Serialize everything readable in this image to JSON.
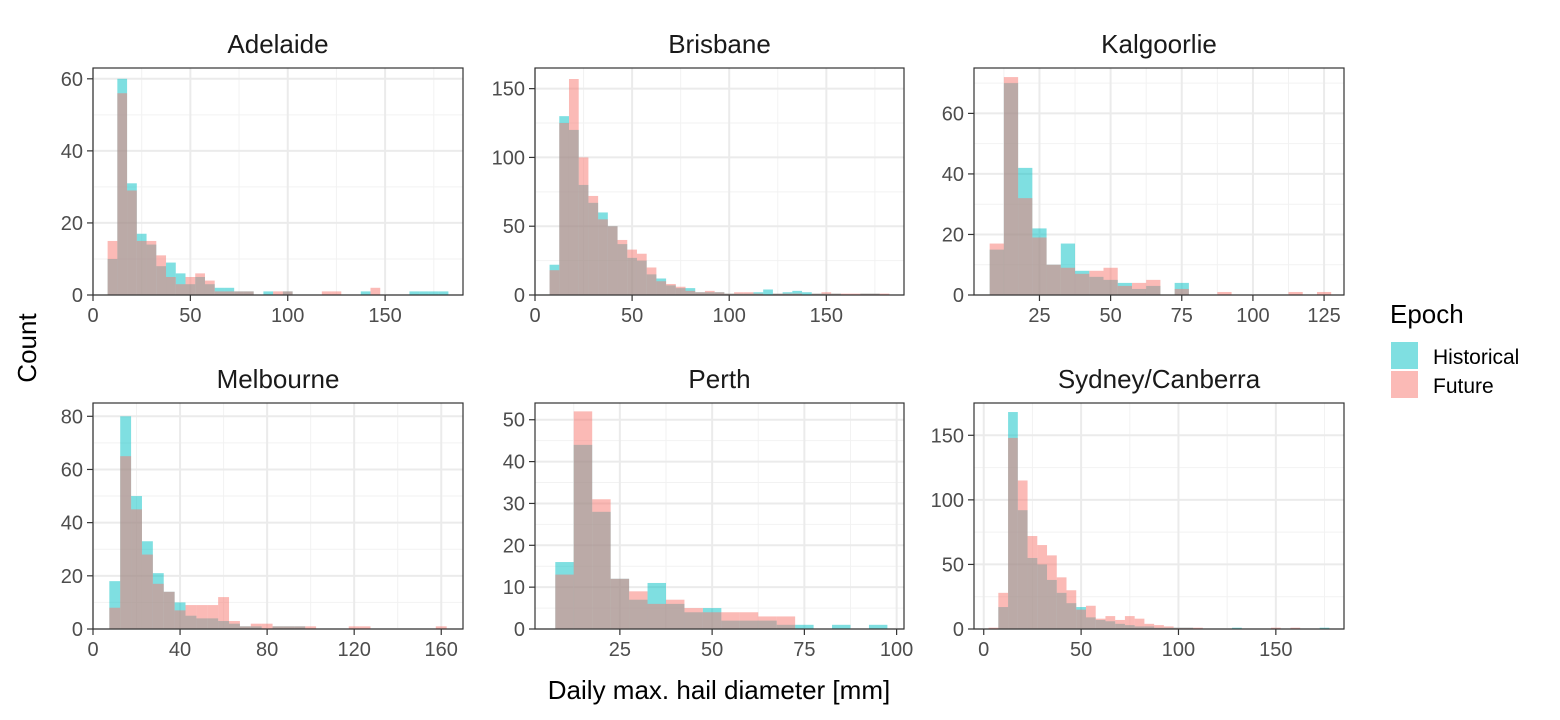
{
  "figure": {
    "xlabel": "Daily max. hail diameter [mm]",
    "ylabel": "Count"
  },
  "legend": {
    "title": "Epoch",
    "placement": "right",
    "items": [
      {
        "label": "Historical",
        "color": "#00BFC4"
      },
      {
        "label": "Future",
        "color": "#F8766D"
      }
    ]
  },
  "chart_data": [
    {
      "type": "bar",
      "title": "Adelaide",
      "bin_width": 5,
      "xlim": [
        0,
        190
      ],
      "ylim": [
        0,
        63
      ],
      "xticks": [
        0,
        50,
        100,
        150
      ],
      "xtick_labels": [
        "0",
        "50",
        "100",
        "150"
      ],
      "yticks": [
        0,
        20,
        40,
        60
      ],
      "ytick_labels": [
        "0",
        "20",
        "40",
        "60"
      ],
      "grid": true,
      "series": [
        {
          "name": "Historical",
          "x": [
            10,
            15,
            20,
            25,
            30,
            35,
            40,
            45,
            50,
            55,
            60,
            65,
            70,
            75,
            80,
            85,
            90,
            95,
            100,
            120,
            125,
            140,
            145,
            165,
            170,
            175,
            180
          ],
          "values": [
            10,
            60,
            31,
            17,
            14,
            8,
            9,
            6,
            3,
            5,
            3,
            2,
            2,
            1,
            1,
            0,
            1,
            0,
            1,
            0,
            0,
            1,
            0,
            1,
            1,
            1,
            1
          ]
        },
        {
          "name": "Future",
          "x": [
            10,
            15,
            20,
            25,
            30,
            35,
            40,
            45,
            50,
            55,
            60,
            65,
            70,
            75,
            80,
            85,
            90,
            95,
            100,
            120,
            125,
            140,
            145,
            165,
            170,
            175,
            180
          ],
          "values": [
            15,
            56,
            29,
            15,
            15,
            11,
            5,
            3,
            5,
            6,
            4,
            1,
            1,
            1,
            1,
            0,
            0,
            1,
            1,
            1,
            1,
            0,
            2,
            0,
            0,
            0,
            0
          ]
        }
      ]
    },
    {
      "type": "bar",
      "title": "Brisbane",
      "bin_width": 5,
      "xlim": [
        0,
        190
      ],
      "ylim": [
        0,
        165
      ],
      "xticks": [
        0,
        50,
        100,
        150
      ],
      "xtick_labels": [
        "0",
        "50",
        "100",
        "150"
      ],
      "yticks": [
        0,
        50,
        100,
        150
      ],
      "ytick_labels": [
        "0",
        "50",
        "100",
        "150"
      ],
      "grid": true,
      "series": [
        {
          "name": "Historical",
          "x": [
            10,
            15,
            20,
            25,
            30,
            35,
            40,
            45,
            50,
            55,
            60,
            65,
            70,
            75,
            80,
            85,
            90,
            95,
            100,
            105,
            110,
            115,
            120,
            125,
            130,
            135,
            140,
            145,
            150,
            155,
            160,
            165,
            170,
            175,
            180
          ],
          "values": [
            22,
            130,
            120,
            80,
            67,
            60,
            50,
            37,
            27,
            25,
            15,
            12,
            7,
            5,
            5,
            2,
            2,
            2,
            1,
            1,
            1,
            2,
            4,
            1,
            2,
            3,
            2,
            1,
            1,
            1,
            0,
            0,
            1,
            1,
            0
          ]
        },
        {
          "name": "Future",
          "x": [
            10,
            15,
            20,
            25,
            30,
            35,
            40,
            45,
            50,
            55,
            60,
            65,
            70,
            75,
            80,
            85,
            90,
            95,
            100,
            105,
            110,
            115,
            120,
            125,
            130,
            135,
            140,
            145,
            150,
            155,
            160,
            165,
            170,
            175,
            180
          ],
          "values": [
            18,
            125,
            157,
            100,
            72,
            55,
            50,
            40,
            33,
            30,
            20,
            10,
            8,
            6,
            3,
            2,
            3,
            2,
            1,
            2,
            2,
            1,
            0,
            1,
            1,
            1,
            0,
            1,
            2,
            1,
            1,
            1,
            1,
            1,
            1
          ]
        }
      ]
    },
    {
      "type": "bar",
      "title": "Kalgoorlie",
      "bin_width": 5,
      "xlim": [
        2,
        132
      ],
      "ylim": [
        0,
        75
      ],
      "xticks": [
        25,
        50,
        75,
        100,
        125
      ],
      "xtick_labels": [
        "25",
        "50",
        "75",
        "100",
        "125"
      ],
      "yticks": [
        0,
        20,
        40,
        60
      ],
      "ytick_labels": [
        "0",
        "20",
        "40",
        "60"
      ],
      "grid": true,
      "series": [
        {
          "name": "Historical",
          "x": [
            10,
            15,
            20,
            25,
            30,
            35,
            40,
            45,
            50,
            55,
            60,
            65,
            70,
            75,
            80,
            85,
            90,
            95,
            100,
            105,
            110,
            115,
            120,
            125
          ],
          "values": [
            15,
            70,
            42,
            22,
            10,
            17,
            8,
            6,
            5,
            4,
            2,
            3,
            0,
            4,
            0,
            0,
            0,
            0,
            0,
            0,
            0,
            0,
            0,
            0
          ]
        },
        {
          "name": "Future",
          "x": [
            10,
            15,
            20,
            25,
            30,
            35,
            40,
            45,
            50,
            55,
            60,
            65,
            70,
            75,
            80,
            85,
            90,
            95,
            100,
            105,
            110,
            115,
            120,
            125
          ],
          "values": [
            17,
            72,
            32,
            19,
            10,
            9,
            7,
            8,
            9,
            3,
            4,
            5,
            0,
            2,
            0,
            0,
            1,
            0,
            0,
            0,
            0,
            1,
            0,
            1
          ]
        }
      ]
    },
    {
      "type": "bar",
      "title": "Melbourne",
      "bin_width": 5,
      "xlim": [
        0,
        170
      ],
      "ylim": [
        0,
        85
      ],
      "xticks": [
        0,
        40,
        80,
        120,
        160
      ],
      "xtick_labels": [
        "0",
        "40",
        "80",
        "120",
        "160"
      ],
      "yticks": [
        0,
        20,
        40,
        60,
        80
      ],
      "ytick_labels": [
        "0",
        "20",
        "40",
        "60",
        "80"
      ],
      "grid": true,
      "series": [
        {
          "name": "Historical",
          "x": [
            10,
            15,
            20,
            25,
            30,
            35,
            40,
            45,
            50,
            55,
            60,
            65,
            70,
            75,
            80,
            85,
            90,
            95,
            100,
            105,
            110,
            115,
            120,
            125,
            130,
            135,
            140,
            145,
            150,
            155,
            160
          ],
          "values": [
            18,
            80,
            50,
            33,
            21,
            14,
            10,
            5,
            4,
            4,
            3,
            2,
            1,
            1,
            0,
            1,
            1,
            1,
            0,
            0,
            0,
            0,
            0,
            0,
            0,
            0,
            0,
            0,
            0,
            0,
            0
          ]
        },
        {
          "name": "Future",
          "x": [
            10,
            15,
            20,
            25,
            30,
            35,
            40,
            45,
            50,
            55,
            60,
            65,
            70,
            75,
            80,
            85,
            90,
            95,
            100,
            105,
            110,
            115,
            120,
            125,
            130,
            135,
            140,
            145,
            150,
            155,
            160
          ],
          "values": [
            8,
            65,
            45,
            28,
            17,
            14,
            7,
            9,
            9,
            9,
            12,
            3,
            1,
            2,
            2,
            1,
            1,
            1,
            1,
            0,
            0,
            0,
            1,
            1,
            0,
            0,
            0,
            0,
            0,
            0,
            1
          ]
        }
      ]
    },
    {
      "type": "bar",
      "title": "Perth",
      "bin_width": 5,
      "xlim": [
        2,
        102
      ],
      "ylim": [
        0,
        54
      ],
      "xticks": [
        25,
        50,
        75,
        100
      ],
      "xtick_labels": [
        "25",
        "50",
        "75",
        "100"
      ],
      "yticks": [
        0,
        10,
        20,
        30,
        40,
        50
      ],
      "ytick_labels": [
        "0",
        "10",
        "20",
        "30",
        "40",
        "50"
      ],
      "grid": true,
      "series": [
        {
          "name": "Historical",
          "x": [
            10,
            15,
            20,
            25,
            30,
            35,
            40,
            45,
            50,
            55,
            60,
            65,
            70,
            75,
            80,
            85,
            90,
            95
          ],
          "values": [
            16,
            44,
            28,
            12,
            7,
            11,
            6,
            4,
            5,
            2,
            2,
            2,
            1,
            1,
            0,
            1,
            0,
            1
          ]
        },
        {
          "name": "Future",
          "x": [
            10,
            15,
            20,
            25,
            30,
            35,
            40,
            45,
            50,
            55,
            60,
            65,
            70,
            75,
            80,
            85,
            90,
            95
          ],
          "values": [
            13,
            52,
            31,
            12,
            9,
            6,
            7,
            5,
            4,
            4,
            4,
            3,
            3,
            0,
            0,
            0,
            0,
            0
          ]
        }
      ]
    },
    {
      "type": "bar",
      "title": "Sydney/Canberra",
      "bin_width": 5,
      "xlim": [
        -5,
        185
      ],
      "ylim": [
        0,
        175
      ],
      "xticks": [
        0,
        50,
        100,
        150
      ],
      "xtick_labels": [
        "0",
        "50",
        "100",
        "150"
      ],
      "yticks": [
        0,
        50,
        100,
        150
      ],
      "ytick_labels": [
        "0",
        "50",
        "100",
        "150"
      ],
      "grid": true,
      "series": [
        {
          "name": "Historical",
          "x": [
            5,
            10,
            15,
            20,
            25,
            30,
            35,
            40,
            45,
            50,
            55,
            60,
            65,
            70,
            75,
            80,
            85,
            90,
            95,
            100,
            105,
            110,
            115,
            120,
            125,
            130,
            135,
            140,
            145,
            150,
            155,
            160,
            165,
            170,
            175
          ],
          "values": [
            0,
            17,
            168,
            92,
            55,
            50,
            38,
            28,
            20,
            17,
            9,
            7,
            6,
            4,
            3,
            2,
            2,
            1,
            1,
            1,
            1,
            0,
            0,
            0,
            0,
            1,
            0,
            0,
            0,
            0,
            0,
            0,
            0,
            0,
            1
          ]
        },
        {
          "name": "Future",
          "x": [
            5,
            10,
            15,
            20,
            25,
            30,
            35,
            40,
            45,
            50,
            55,
            60,
            65,
            70,
            75,
            80,
            85,
            90,
            95,
            100,
            105,
            110,
            115,
            120,
            125,
            130,
            135,
            140,
            145,
            150,
            155,
            160,
            165,
            170,
            175
          ],
          "values": [
            1,
            28,
            148,
            115,
            72,
            65,
            57,
            40,
            30,
            15,
            18,
            8,
            10,
            7,
            10,
            8,
            4,
            3,
            2,
            1,
            1,
            1,
            0,
            0,
            0,
            0,
            0,
            0,
            0,
            1,
            0,
            1,
            0,
            0,
            0
          ]
        }
      ]
    }
  ]
}
